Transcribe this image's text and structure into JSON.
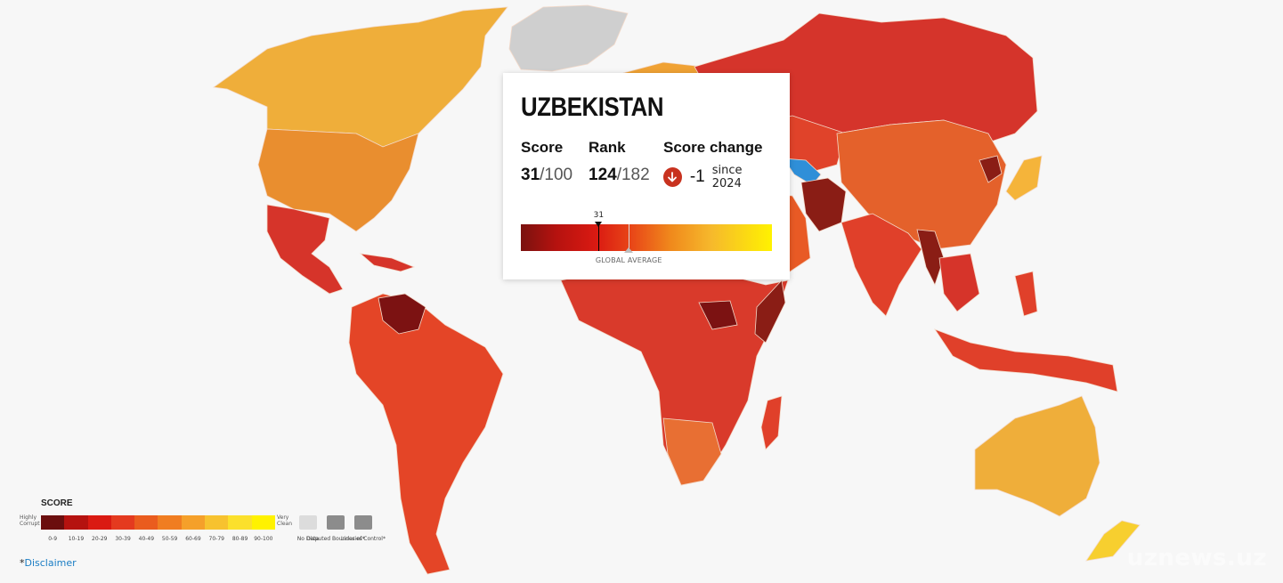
{
  "tooltip": {
    "country": "UZBEKISTAN",
    "score_label": "Score",
    "score_value": "31",
    "score_max": "/100",
    "rank_label": "Rank",
    "rank_value": "124",
    "rank_max": "/182",
    "change_label": "Score change",
    "change_value": "-1",
    "change_since": "since 2024",
    "change_icon": "arrow-down-icon",
    "bar_marker_value": 31,
    "bar_marker_text": "31",
    "global_average_value": 43,
    "global_average_label": "GLOBAL AVERAGE"
  },
  "legend": {
    "title": "SCORE",
    "low_label": "Highly Corrupt",
    "high_label": "Very Clean",
    "ranges": [
      "0-9",
      "10-19",
      "20-29",
      "30-39",
      "40-49",
      "50-59",
      "60-69",
      "70-79",
      "80-89",
      "90-100"
    ],
    "colors": [
      "#6b0e0e",
      "#b5120f",
      "#da1a12",
      "#e43a1f",
      "#ea5c1e",
      "#f07d21",
      "#f5a02a",
      "#f7c22f",
      "#fbe02c",
      "#fff200"
    ],
    "extra": [
      {
        "label": "No Data",
        "color": "#dcdcdc"
      },
      {
        "label": "Disputed Boundaries*",
        "color": "#8c8c8c"
      },
      {
        "label": "Lines of Control*",
        "color": "#8c8c8c"
      }
    ]
  },
  "footer": {
    "disclaimer_prefix": "*",
    "disclaimer_link": "Disclaimer"
  },
  "watermark": "uznews.uz",
  "colors": {
    "highlight": "#2f8fd8",
    "no_data": "#cfcfcf"
  }
}
